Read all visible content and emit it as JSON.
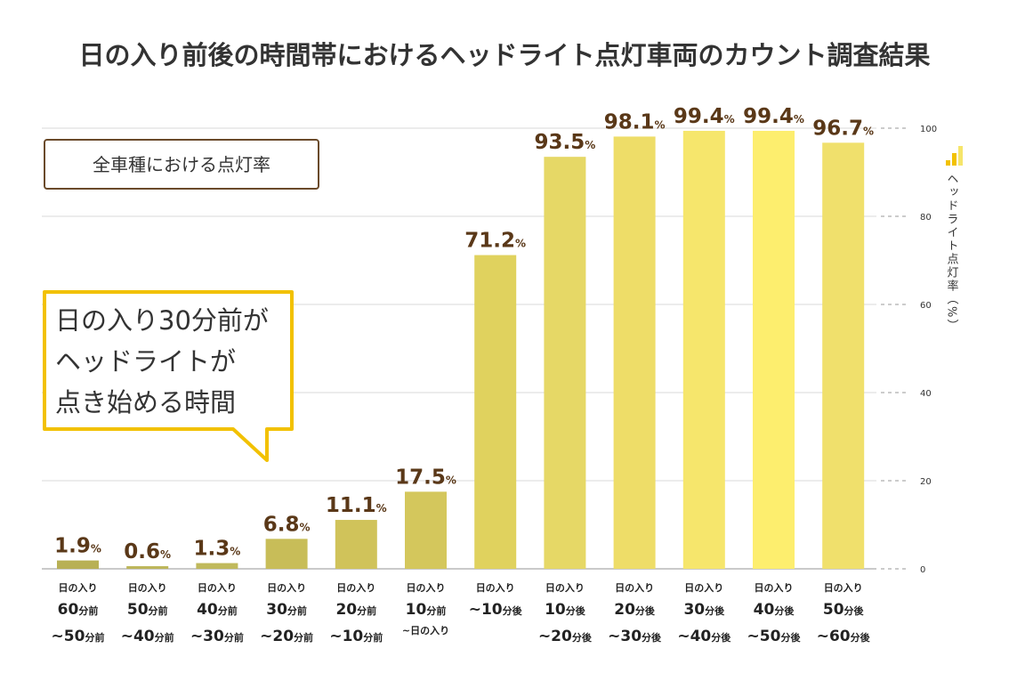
{
  "title": "日の入り前後の時間帯におけるヘッドライト点灯車両のカウント調査結果",
  "badge": "全車種における点灯率",
  "callout": [
    "日の入り30分前が",
    "ヘッドライトが",
    "点き始める時間"
  ],
  "chart_data": {
    "type": "bar",
    "title": "日の入り前後の時間帯におけるヘッドライト点灯車両のカウント調査結果",
    "ylabel": "ヘッドライト点灯率（%）",
    "ylim": [
      0,
      100
    ],
    "yticks": [
      "0",
      "20",
      "40",
      "60",
      "80",
      "100"
    ],
    "unit": "%",
    "categories": [
      [
        "日の入り",
        "60",
        "分前",
        "~50",
        "分前"
      ],
      [
        "日の入り",
        "50",
        "分前",
        "~40",
        "分前"
      ],
      [
        "日の入り",
        "40",
        "分前",
        "~30",
        "分前"
      ],
      [
        "日の入り",
        "30",
        "分前",
        "~20",
        "分前"
      ],
      [
        "日の入り",
        "20",
        "分前",
        "~10",
        "分前"
      ],
      [
        "日の入り",
        "10",
        "分前",
        "~日の入り",
        ""
      ],
      [
        "日の入り",
        "~10",
        "分後",
        "",
        ""
      ],
      [
        "日の入り",
        "10",
        "分後",
        "~20",
        "分後"
      ],
      [
        "日の入り",
        "20",
        "分後",
        "~30",
        "分後"
      ],
      [
        "日の入り",
        "30",
        "分後",
        "~40",
        "分後"
      ],
      [
        "日の入り",
        "40",
        "分後",
        "~50",
        "分後"
      ],
      [
        "日の入り",
        "50",
        "分後",
        "~60",
        "分後"
      ]
    ],
    "values": [
      1.9,
      0.6,
      1.3,
      6.8,
      11.1,
      17.5,
      71.2,
      93.5,
      98.1,
      99.4,
      99.4,
      96.7
    ],
    "value_labels": [
      "1.9",
      "0.6",
      "1.3",
      "6.8",
      "11.1",
      "17.5",
      "71.2",
      "93.5",
      "98.1",
      "99.4",
      "99.4",
      "96.7"
    ],
    "colors": [
      "#b8b055",
      "#bdb65a",
      "#c0b95c",
      "#c8bd58",
      "#d0c35a",
      "#d4c75c",
      "#e0d25e",
      "#e6d866",
      "#eedd68",
      "#f6e66c",
      "#fdee6e",
      "#f0e06c"
    ],
    "grid": true
  }
}
